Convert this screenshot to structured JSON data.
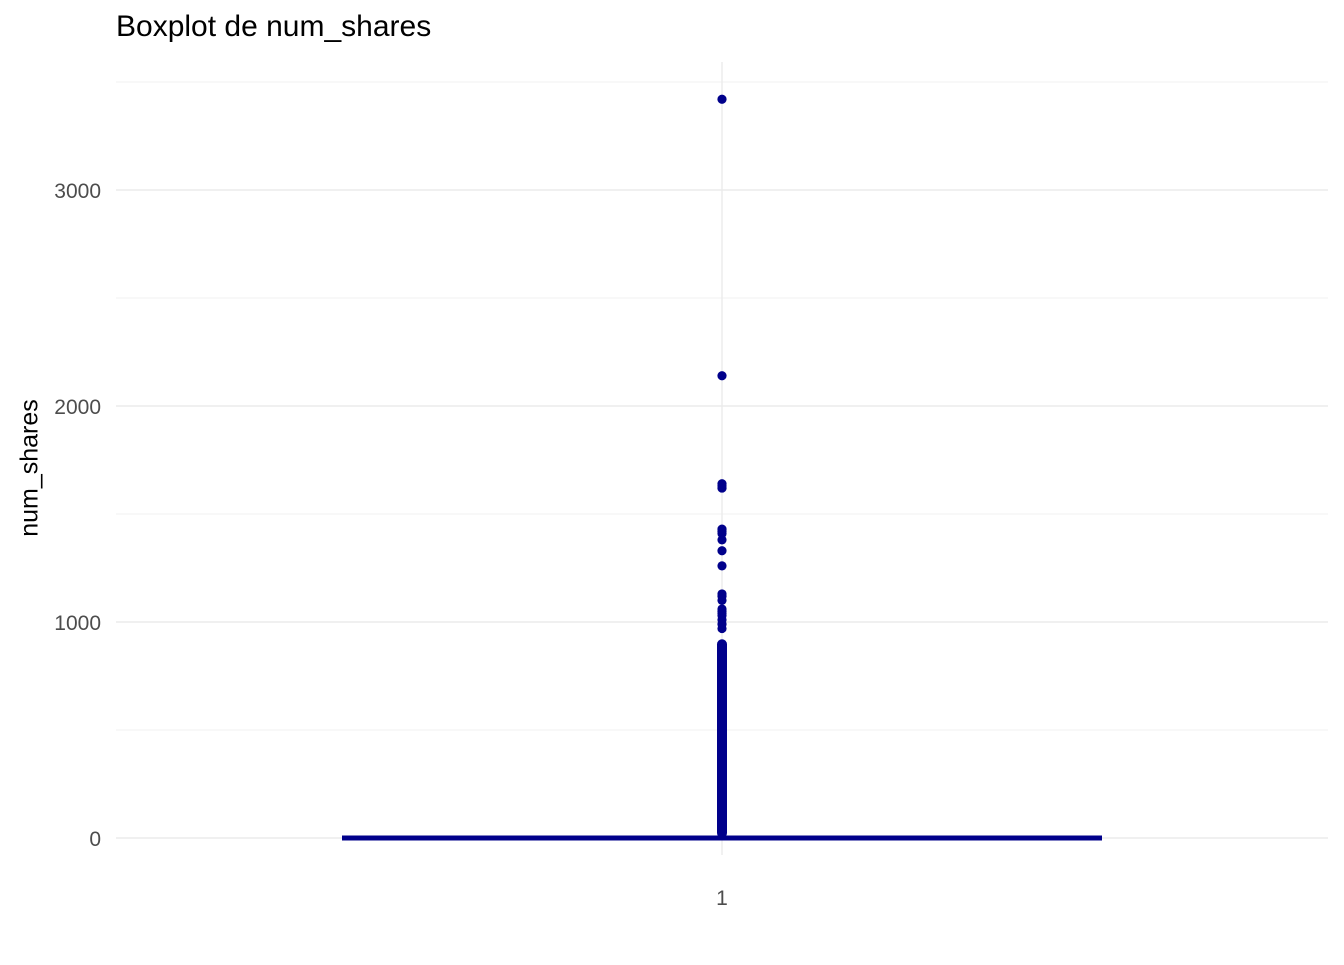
{
  "chart_data": {
    "type": "box",
    "title": "Boxplot de num_shares",
    "xlabel": "",
    "ylabel": "num_shares",
    "categories": [
      "1"
    ],
    "y_ticks": [
      0,
      1000,
      2000,
      3000
    ],
    "y_tick_labels": [
      "0",
      "1000",
      "2000",
      "3000"
    ],
    "ylim": [
      -170,
      3560
    ],
    "grid": true,
    "colors": {
      "box": "#00008B",
      "grid_major": "#EBEBEB",
      "grid_minor": "#F2F2F2",
      "tick_text": "#4D4D4D"
    },
    "box": {
      "min": 0,
      "q1": 0,
      "median": 0,
      "q3": 0,
      "max": 0
    },
    "outliers": [
      3420,
      2140,
      1640,
      1630,
      1620,
      1430,
      1420,
      1410,
      1380,
      1330,
      1260,
      1130,
      1120,
      1100,
      1060,
      1050,
      1040,
      1030,
      1010,
      990,
      970
    ],
    "outlier_ranges": [
      [
        0,
        920
      ]
    ]
  }
}
